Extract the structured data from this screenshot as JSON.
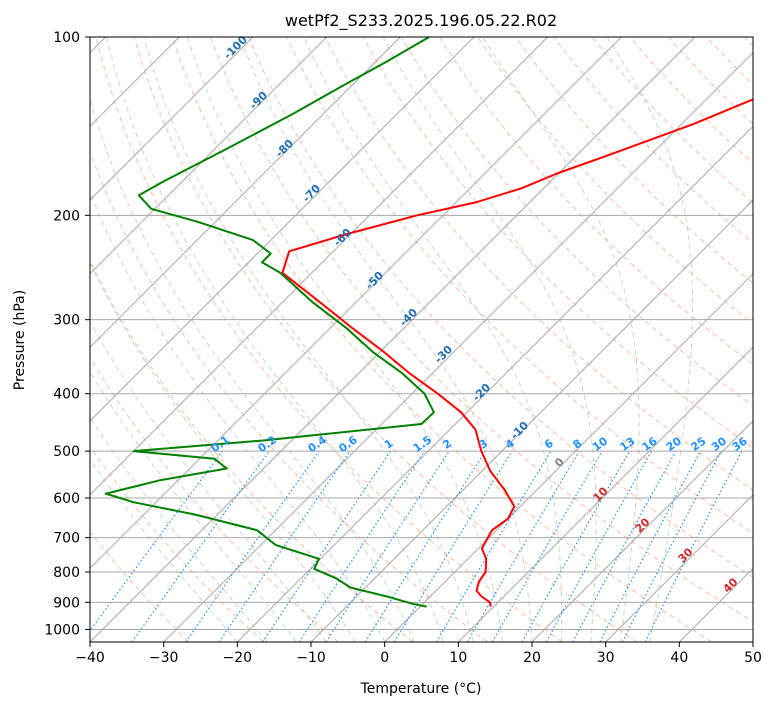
{
  "chart_data": {
    "type": "line",
    "subtype": "skew-t log-p",
    "title": "wetPf2_S233.2025.196.05.22.R02",
    "xlabel": "Temperature (°C)",
    "ylabel": "Pressure (hPa)",
    "xlim": [
      -40,
      50
    ],
    "ylim": [
      1050,
      100
    ],
    "yscale": "log",
    "grid": true,
    "x_ticks": [
      -40,
      -30,
      -20,
      -10,
      0,
      10,
      20,
      30,
      40,
      50
    ],
    "y_ticks": [
      100,
      200,
      300,
      400,
      500,
      600,
      700,
      800,
      900,
      1000
    ],
    "series": [
      {
        "role": "temperature",
        "color": "#ff0000",
        "points": [
          [
            -13.9,
            100
          ],
          [
            -20.7,
            120
          ],
          [
            -28.3,
            140
          ],
          [
            -35.6,
            158
          ],
          [
            -40.2,
            170
          ],
          [
            -43.0,
            180
          ],
          [
            -47.2,
            190
          ],
          [
            -53.5,
            200
          ],
          [
            -60.5,
            215
          ],
          [
            -66.0,
            230
          ],
          [
            -64.0,
            250
          ],
          [
            -55.0,
            280
          ],
          [
            -47.0,
            310
          ],
          [
            -39.5,
            340
          ],
          [
            -33.0,
            370
          ],
          [
            -26.5,
            400
          ],
          [
            -20.8,
            430
          ],
          [
            -16.5,
            460
          ],
          [
            -12.8,
            500
          ],
          [
            -8.9,
            540
          ],
          [
            -4.5,
            580
          ],
          [
            -0.8,
            620
          ],
          [
            0.0,
            650
          ],
          [
            -0.6,
            680
          ],
          [
            0.5,
            730
          ],
          [
            2.5,
            760
          ],
          [
            4.2,
            800
          ],
          [
            4.6,
            830
          ],
          [
            5.5,
            860
          ],
          [
            7.0,
            880
          ],
          [
            8.9,
            900
          ],
          [
            9.6,
            915
          ]
        ]
      },
      {
        "role": "dewpoint",
        "color": "#008000",
        "points": [
          [
            -76.1,
            100
          ],
          [
            -78.5,
            110
          ],
          [
            -81.0,
            120
          ],
          [
            -84.2,
            135
          ],
          [
            -88.5,
            155
          ],
          [
            -92.5,
            175
          ],
          [
            -94.0,
            185
          ],
          [
            -90.5,
            195
          ],
          [
            -82.5,
            205
          ],
          [
            -72.5,
            220
          ],
          [
            -68.2,
            232
          ],
          [
            -68.2,
            240
          ],
          [
            -64.3,
            250
          ],
          [
            -56.0,
            280
          ],
          [
            -47.8,
            310
          ],
          [
            -41.0,
            340
          ],
          [
            -34.0,
            370
          ],
          [
            -28.3,
            400
          ],
          [
            -24.5,
            430
          ],
          [
            -24.6,
            450
          ],
          [
            -44.0,
            480
          ],
          [
            -60.0,
            500
          ],
          [
            -48.0,
            515
          ],
          [
            -45.0,
            535
          ],
          [
            -52.5,
            560
          ],
          [
            -58.0,
            590
          ],
          [
            -53.0,
            610
          ],
          [
            -43.0,
            640
          ],
          [
            -32.5,
            680
          ],
          [
            -28.0,
            720
          ],
          [
            -20.2,
            760
          ],
          [
            -19.5,
            790
          ],
          [
            -15.2,
            820
          ],
          [
            -12.0,
            850
          ],
          [
            -5.8,
            880
          ],
          [
            -1.4,
            905
          ],
          [
            0.9,
            915
          ]
        ]
      }
    ],
    "isotherm_labels": [],
    "dry_adiabat_labels": [],
    "moist_adiabat_labels": [],
    "mixing_ratio_labels": [
      "0.1",
      "0.2",
      "0.4",
      "0.6",
      "1",
      "1.5",
      "2",
      "3",
      "4",
      "6",
      "8",
      "10",
      "13",
      "16",
      "20",
      "25",
      "30",
      "36"
    ],
    "annotations": [
      {
        "text": "-100",
        "color": "#1f6fb2"
      },
      {
        "text": "-90",
        "color": "#1f6fb2"
      },
      {
        "text": "-80",
        "color": "#1f6fb2"
      },
      {
        "text": "-70",
        "color": "#1f6fb2"
      },
      {
        "text": "-60",
        "color": "#1f6fb2"
      },
      {
        "text": "-50",
        "color": "#1f6fb2"
      },
      {
        "text": "-40",
        "color": "#1f6fb2"
      },
      {
        "text": "-30",
        "color": "#1f6fb2"
      },
      {
        "text": "-20",
        "color": "#1f6fb2"
      },
      {
        "text": "-10",
        "color": "#1f6fb2"
      },
      {
        "text": "0",
        "color": "#808080"
      },
      {
        "text": "10",
        "color": "#d62728"
      },
      {
        "text": "20",
        "color": "#d62728"
      },
      {
        "text": "30",
        "color": "#d62728"
      },
      {
        "text": "40",
        "color": "#d62728"
      }
    ]
  },
  "colors": {
    "isotherm": "#a8a8a8",
    "isobar": "#a8a8a8",
    "dry_adiabat": "#ffa07a",
    "moist_adiabat": "#8fbc8f",
    "mixing_ratio": "#1e90ff"
  }
}
